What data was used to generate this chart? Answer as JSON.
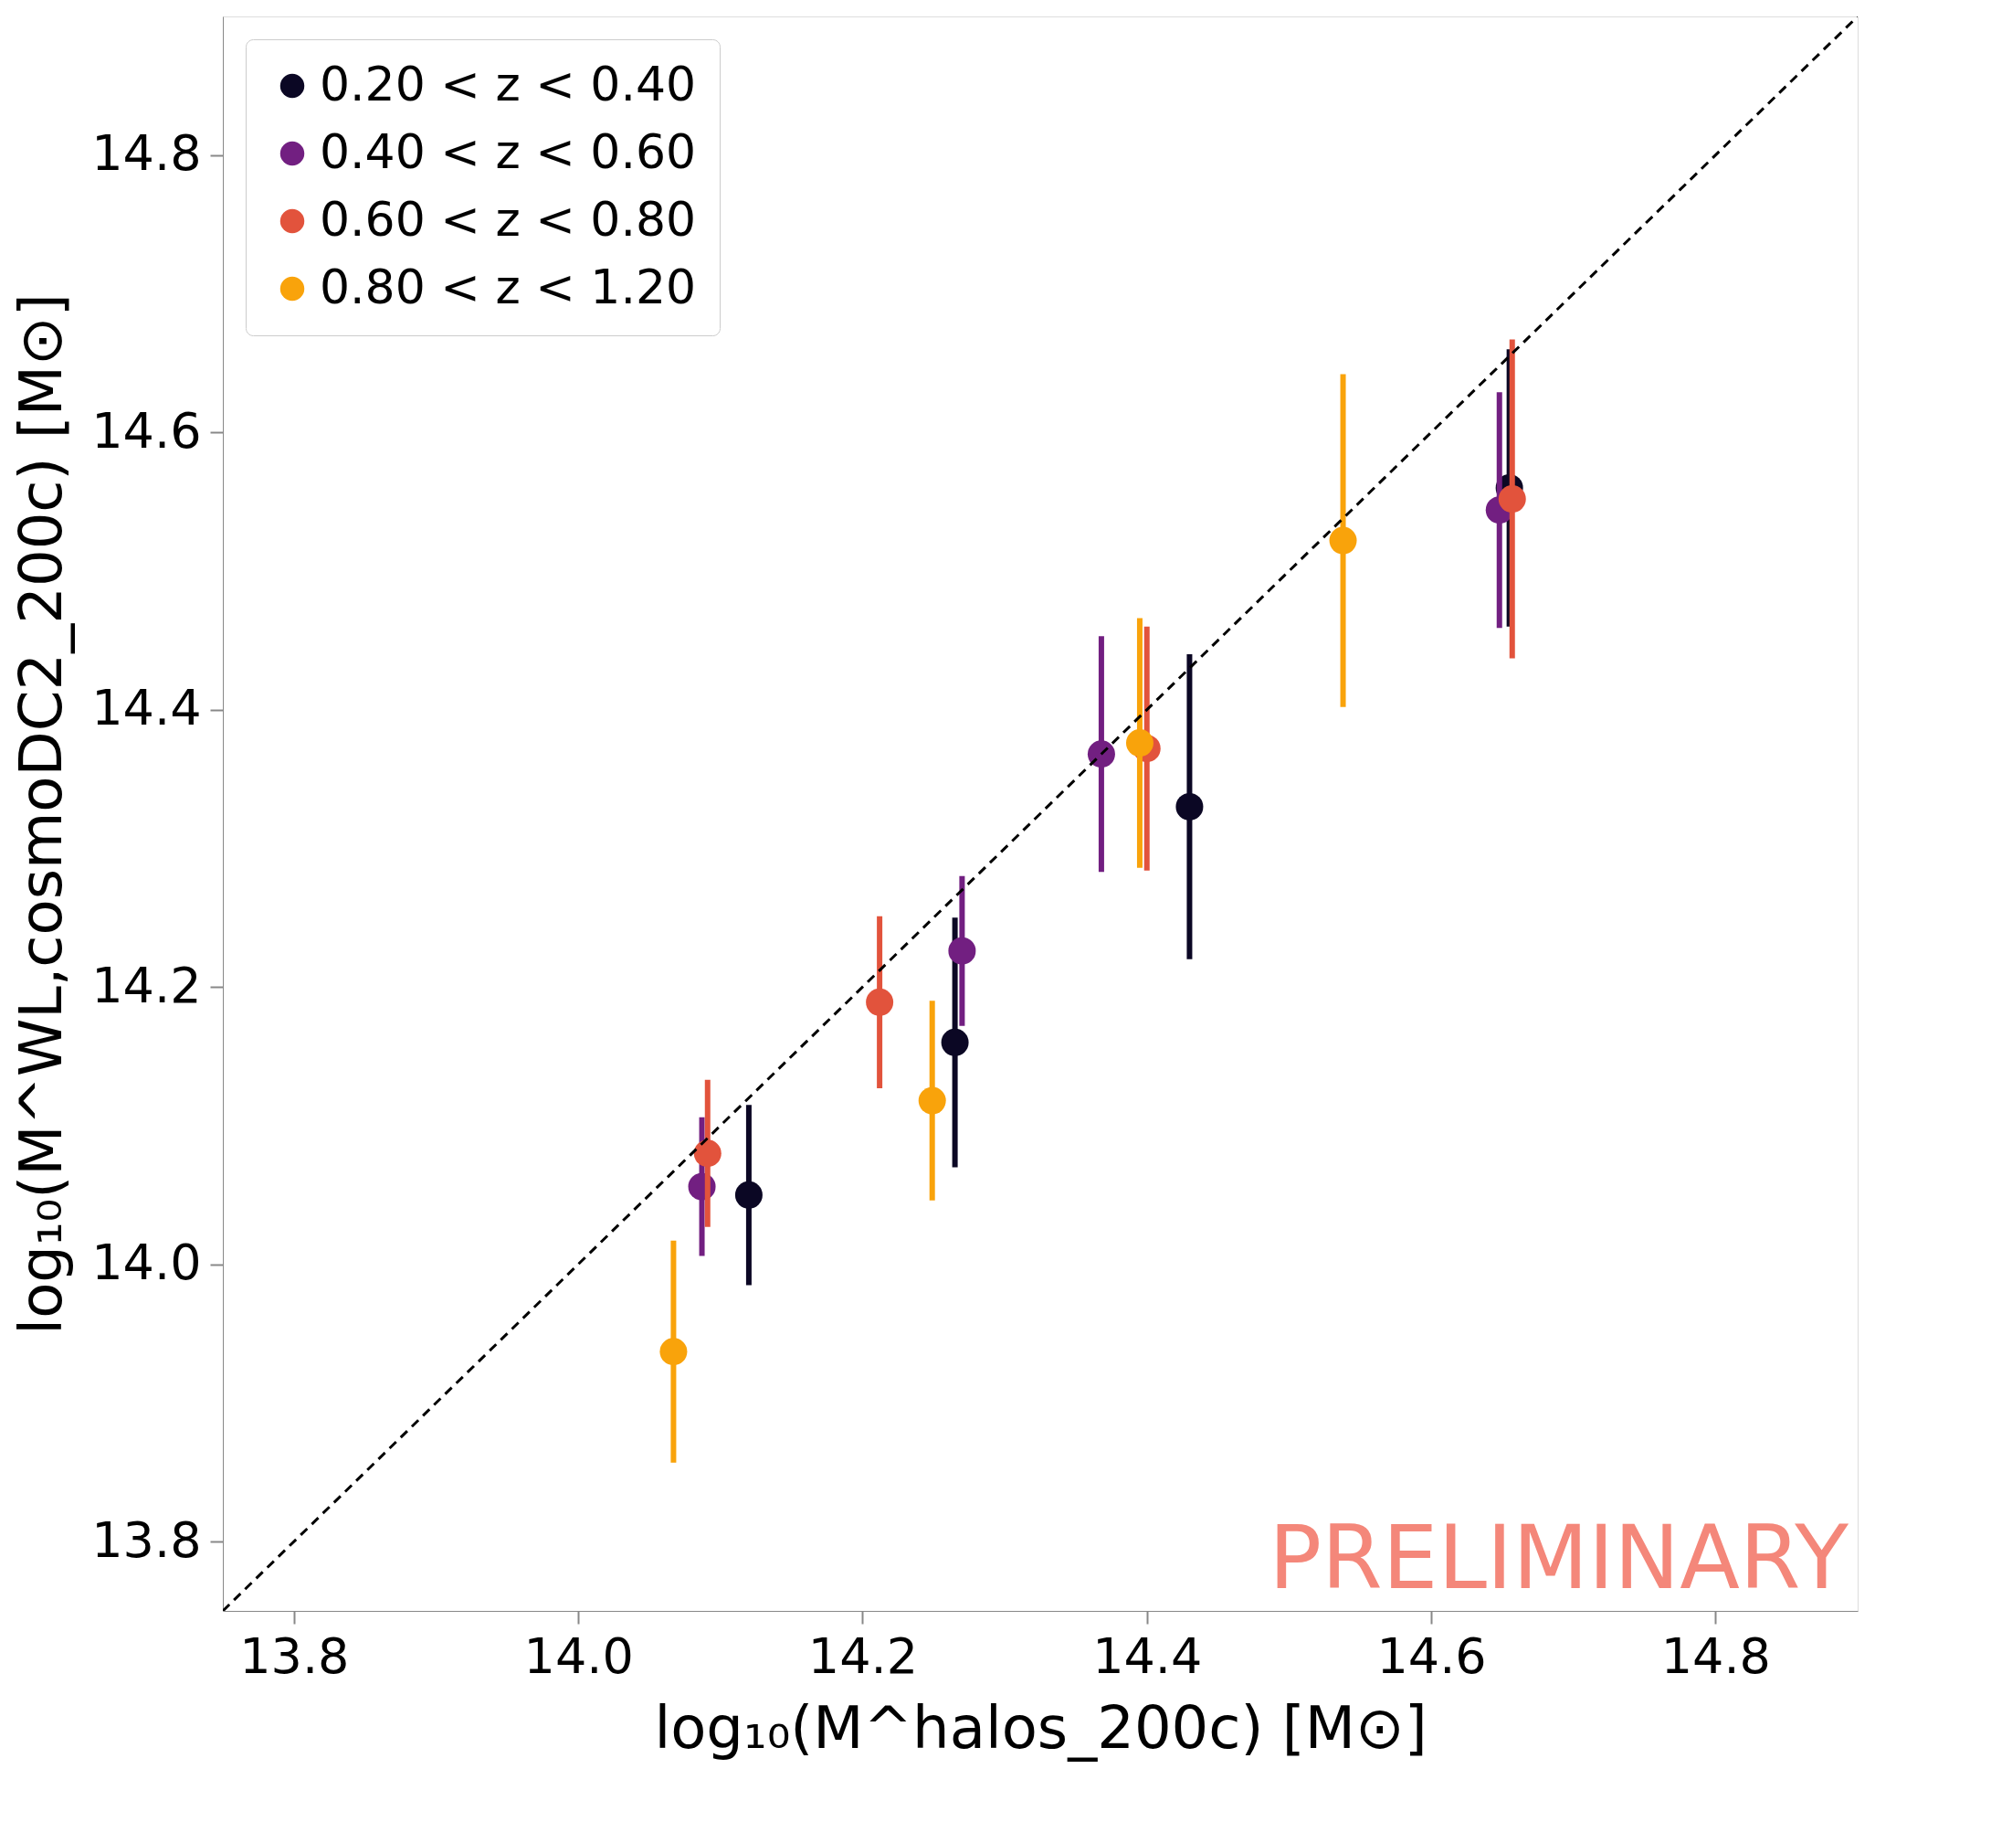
{
  "chart_data": {
    "type": "scatter",
    "xlabel": "log₁₀(M^halos_200c) [M⊙]",
    "ylabel": "log₁₀(M^WL,cosmoDC2_200c) [M⊙]",
    "annotations": [
      "PRELIMINARY"
    ],
    "xlim": [
      13.75,
      14.9
    ],
    "ylim": [
      13.75,
      14.9
    ],
    "xticks": [
      13.8,
      {
        "value": 14,
        "label": "14.0"
      },
      14.2,
      14.4,
      14.6,
      14.8
    ],
    "yticks": [
      13.8,
      {
        "value": 14,
        "label": "14.0"
      },
      14.2,
      14.4,
      14.6,
      14.8
    ],
    "grid": false,
    "legend": "top left",
    "marker": "circle",
    "series": [
      {
        "name": "0.20 < z < 0.40",
        "color": "#0b0724",
        "x": [
          14.12,
          14.265,
          14.43,
          14.655
        ],
        "values": [
          14.05,
          14.16,
          14.33,
          14.56
        ],
        "errors": [
          0.065,
          0.09,
          0.11,
          0.1
        ]
      },
      {
        "name": "0.40 < z < 0.60",
        "color": "#721f81",
        "x": [
          14.087,
          14.27,
          14.368,
          14.648
        ],
        "values": [
          14.056,
          14.226,
          14.368,
          14.544
        ],
        "errors": [
          0.05,
          0.054,
          0.085,
          0.085
        ]
      },
      {
        "name": "0.60 < z < 0.80",
        "color": "#e2533c",
        "x": [
          14.091,
          14.212,
          14.4,
          14.657
        ],
        "values": [
          14.08,
          14.189,
          14.372,
          14.552
        ],
        "errors": [
          0.053,
          0.062,
          0.088,
          0.115
        ]
      },
      {
        "name": "0.80 < z < 1.20",
        "color": "#f9a30b",
        "x": [
          14.067,
          14.249,
          14.395,
          14.538
        ],
        "values": [
          13.937,
          14.118,
          14.376,
          14.522
        ],
        "errors": [
          0.08,
          0.072,
          0.09,
          0.12
        ]
      },
      {
        "type": "line",
        "color": "#000000",
        "line_style": "dashed",
        "marker": "none",
        "x": [
          13.75,
          14.9
        ],
        "values": [
          13.75,
          14.9
        ]
      }
    ]
  }
}
